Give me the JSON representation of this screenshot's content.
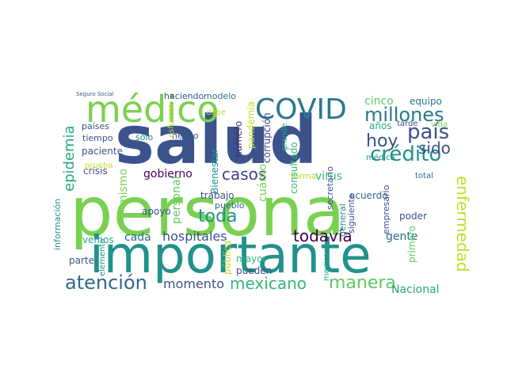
{
  "cloud": {
    "words": [
      {
        "text": "salud",
        "color": "#3b528b"
      },
      {
        "text": "persona",
        "color": "#7ad151"
      },
      {
        "text": "importante",
        "color": "#21918c"
      },
      {
        "text": "médico",
        "color": "#7ad151"
      },
      {
        "text": "COVID",
        "color": "#2a788e"
      },
      {
        "text": "millones",
        "color": "#2a788e"
      },
      {
        "text": "país",
        "color": "#3b528b"
      },
      {
        "text": "crédito",
        "color": "#21918c"
      },
      {
        "text": "hoy",
        "color": "#3b528b"
      },
      {
        "text": "sido",
        "color": "#3b528b"
      },
      {
        "text": "enfermedad",
        "color": "#bddf26"
      },
      {
        "text": "atención",
        "color": "#31688e"
      },
      {
        "text": "mexicano",
        "color": "#35b779"
      },
      {
        "text": "manera",
        "color": "#5ec962"
      },
      {
        "text": "todavía",
        "color": "#440154"
      },
      {
        "text": "toda",
        "color": "#21918c"
      },
      {
        "text": "casos",
        "color": "#414487"
      },
      {
        "text": "epidemia",
        "color": "#22a884"
      },
      {
        "text": "hospitales",
        "color": "#3b528b"
      },
      {
        "text": "momento",
        "color": "#3b528b"
      },
      {
        "text": "Nacional",
        "color": "#22a884"
      },
      {
        "text": "gente",
        "color": "#31688e"
      },
      {
        "text": "virus",
        "color": "#35b779"
      },
      {
        "text": "cinco",
        "color": "#5ec962"
      },
      {
        "text": "equipo",
        "color": "#2a788e"
      },
      {
        "text": "gobierno",
        "color": "#440154"
      },
      {
        "text": "paciente",
        "color": "#3b528b"
      },
      {
        "text": "personal",
        "color": "#5ec962"
      },
      {
        "text": "mismo",
        "color": "#7ad151"
      },
      {
        "text": "cada",
        "color": "#31688e"
      },
      {
        "text": "apoyo",
        "color": "#3b528b"
      },
      {
        "text": "trabajo",
        "color": "#3b528b"
      },
      {
        "text": "número",
        "color": "#482878"
      },
      {
        "text": "Bienestar",
        "color": "#21918c"
      },
      {
        "text": "cuánto",
        "color": "#7ad151"
      },
      {
        "text": "acuerdo",
        "color": "#31688e"
      },
      {
        "text": "poder",
        "color": "#3b528b"
      },
      {
        "text": "mayor",
        "color": "#35b779"
      },
      {
        "text": "haciendo",
        "color": "#3b528b"
      },
      {
        "text": "modelo",
        "color": "#31688e"
      },
      {
        "text": "países",
        "color": "#3b528b"
      },
      {
        "text": "tiempo",
        "color": "#3b528b"
      },
      {
        "text": "años",
        "color": "#22a884"
      },
      {
        "text": "tarde",
        "color": "#3b528b"
      },
      {
        "text": "vida",
        "color": "#7ad151"
      },
      {
        "text": "crisis",
        "color": "#3b528b"
      },
      {
        "text": "información",
        "color": "#21918c"
      },
      {
        "text": "vemos",
        "color": "#22a884"
      },
      {
        "text": "parte",
        "color": "#3b528b"
      },
      {
        "text": "pueden",
        "color": "#3b528b"
      },
      {
        "text": "pueblo",
        "color": "#31688e"
      },
      {
        "text": "pública",
        "color": "#bddf26"
      },
      {
        "text": "forma",
        "color": "#bddf26"
      },
      {
        "text": "pandemia",
        "color": "#bddf26"
      },
      {
        "text": "corrupción",
        "color": "#414487"
      },
      {
        "text": "consultado",
        "color": "#35b779"
      },
      {
        "text": "secretario",
        "color": "#3b528b"
      },
      {
        "text": "general",
        "color": "#21918c"
      },
      {
        "text": "siguiente",
        "color": "#3b528b"
      },
      {
        "text": "empresario",
        "color": "#3b528b"
      },
      {
        "text": "total",
        "color": "#31688e"
      },
      {
        "text": "primero",
        "color": "#5ec962"
      },
      {
        "text": "mexicana",
        "color": "#22a884"
      },
      {
        "text": "grande",
        "color": "#22a884"
      },
      {
        "text": "necho",
        "color": "#3b528b"
      },
      {
        "text": "sólo",
        "color": "#21918c"
      },
      {
        "text": "esfuerzo",
        "color": "#bddf26"
      },
      {
        "text": "prueba",
        "color": "#bddf26"
      },
      {
        "text": "médica",
        "color": "#21918c"
      },
      {
        "text": "elemento",
        "color": "#21918c"
      },
      {
        "text": "debe",
        "color": "#bddf26"
      },
      {
        "text": "Seguro Social",
        "color": "#3b528b"
      }
    ]
  }
}
